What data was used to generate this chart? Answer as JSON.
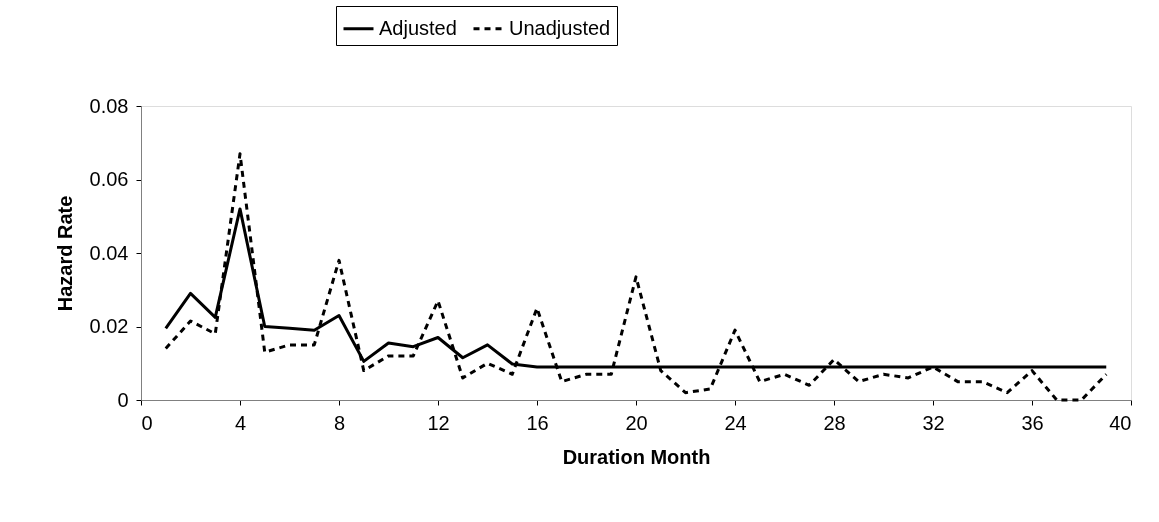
{
  "chart_data": {
    "type": "line",
    "xlabel": "Duration Month",
    "ylabel": "Hazard Rate",
    "x": [
      1,
      2,
      3,
      4,
      5,
      6,
      7,
      8,
      9,
      10,
      11,
      12,
      13,
      14,
      15,
      16,
      17,
      18,
      19,
      20,
      21,
      22,
      23,
      24,
      25,
      26,
      27,
      28,
      29,
      30,
      31,
      32,
      33,
      34,
      35,
      36,
      37,
      38,
      39
    ],
    "series": [
      {
        "name": "Adjusted",
        "color": "#000000",
        "line_style": "solid",
        "values": [
          0.0195,
          0.029,
          0.0225,
          0.052,
          0.02,
          0.0195,
          0.019,
          0.023,
          0.0105,
          0.0155,
          0.0145,
          0.017,
          0.0115,
          0.015,
          0.0098,
          0.009,
          0.009,
          0.009,
          0.009,
          0.009,
          0.009,
          0.009,
          0.009,
          0.009,
          0.009,
          0.009,
          0.009,
          0.009,
          0.009,
          0.009,
          0.009,
          0.009,
          0.009,
          0.009,
          0.009,
          0.009,
          0.009,
          0.009,
          0.009
        ]
      },
      {
        "name": "Unadjusted",
        "color": "#000000",
        "line_style": "dashed",
        "values": [
          0.014,
          0.0215,
          0.018,
          0.067,
          0.013,
          0.015,
          0.015,
          0.038,
          0.008,
          0.012,
          0.012,
          0.027,
          0.006,
          0.01,
          0.007,
          0.025,
          0.005,
          0.007,
          0.007,
          0.0335,
          0.008,
          0.002,
          0.003,
          0.019,
          0.005,
          0.007,
          0.004,
          0.011,
          0.005,
          0.007,
          0.006,
          0.009,
          0.005,
          0.005,
          0.002,
          0.008,
          0.0,
          0.0,
          0.007
        ]
      }
    ],
    "xlim": [
      0,
      40
    ],
    "xticks": [
      0,
      4,
      8,
      12,
      16,
      20,
      24,
      28,
      32,
      36,
      40
    ],
    "ylim": [
      0,
      0.08
    ],
    "yticks": [
      {
        "value": 0,
        "label": "0"
      },
      0.02,
      0.04,
      0.06,
      0.08
    ],
    "grid": false,
    "legend": "top",
    "marker": "none"
  }
}
